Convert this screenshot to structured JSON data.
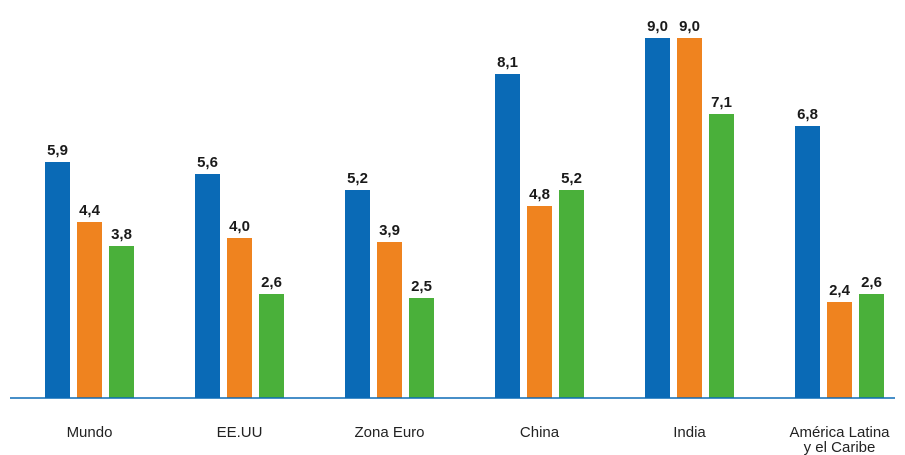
{
  "chart_data": {
    "type": "bar",
    "title": "",
    "xlabel": "",
    "ylabel": "",
    "ylim": [
      0,
      9
    ],
    "grid": false,
    "legend": "none",
    "categories": [
      "Mundo",
      "EE.UU",
      "Zona Euro",
      "China",
      "India",
      "América Latina y el Caribe"
    ],
    "category_lines": [
      [
        "Mundo"
      ],
      [
        "EE.UU"
      ],
      [
        "Zona Euro"
      ],
      [
        "China"
      ],
      [
        "India"
      ],
      [
        "América Latina",
        "y el Caribe"
      ]
    ],
    "series": [
      {
        "color": "#0a6ab6",
        "values": [
          5.9,
          5.6,
          5.2,
          8.1,
          9.0,
          6.8
        ],
        "labels": [
          "5,9",
          "5,6",
          "5,2",
          "8,1",
          "9,0",
          "6,8"
        ]
      },
      {
        "color": "#ef831f",
        "values": [
          4.4,
          4.0,
          3.9,
          4.8,
          9.0,
          2.4
        ],
        "labels": [
          "4,4",
          "4,0",
          "3,9",
          "4,8",
          "9,0",
          "2,4"
        ]
      },
      {
        "color": "#4ab03a",
        "values": [
          3.8,
          2.6,
          2.5,
          5.2,
          7.1,
          2.6
        ],
        "labels": [
          "3,8",
          "2,6",
          "2,5",
          "5,2",
          "7,1",
          "2,6"
        ]
      }
    ],
    "axis_color": "#0a6ab6"
  }
}
